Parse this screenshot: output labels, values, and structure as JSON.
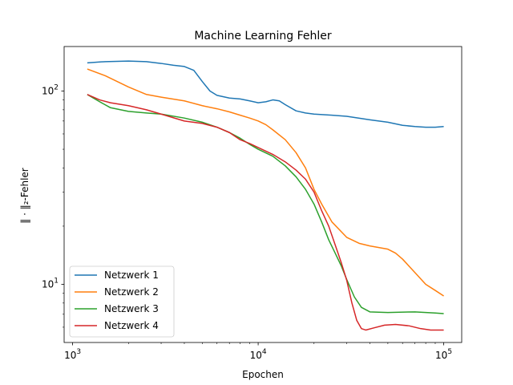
{
  "chart_data": {
    "type": "line",
    "title": "Machine Learning Fehler",
    "xlabel": "Epochen",
    "ylabel": "‖ · ‖₂-Fehler",
    "xscale": "log",
    "yscale": "log",
    "xlim": [
      900,
      125000
    ],
    "ylim": [
      5,
      170
    ],
    "grid": false,
    "legend_position": "lower-left",
    "x_ticks": [
      {
        "value": 1000,
        "base": "10",
        "exp": "3"
      },
      {
        "value": 10000,
        "base": "10",
        "exp": "4"
      },
      {
        "value": 100000,
        "base": "10",
        "exp": "5"
      }
    ],
    "y_ticks": [
      {
        "value": 10,
        "base": "10",
        "exp": "1"
      },
      {
        "value": 100,
        "base": "10",
        "exp": "2"
      }
    ],
    "series": [
      {
        "name": "Netzwerk 1",
        "color": "#1f77b4",
        "points": [
          [
            1200,
            140
          ],
          [
            1500,
            142
          ],
          [
            2000,
            143
          ],
          [
            2500,
            142
          ],
          [
            3000,
            139
          ],
          [
            3500,
            136
          ],
          [
            4000,
            134
          ],
          [
            4500,
            128
          ],
          [
            5000,
            112
          ],
          [
            5500,
            100
          ],
          [
            6000,
            95
          ],
          [
            7000,
            92
          ],
          [
            8000,
            91
          ],
          [
            9000,
            89
          ],
          [
            10000,
            87
          ],
          [
            11000,
            88
          ],
          [
            12000,
            90
          ],
          [
            13000,
            89
          ],
          [
            14000,
            85
          ],
          [
            16000,
            79
          ],
          [
            18000,
            77
          ],
          [
            20000,
            76
          ],
          [
            25000,
            75
          ],
          [
            30000,
            74
          ],
          [
            40000,
            71
          ],
          [
            50000,
            69
          ],
          [
            60000,
            66.5
          ],
          [
            70000,
            65.5
          ],
          [
            80000,
            65
          ],
          [
            90000,
            65
          ],
          [
            100000,
            65.5
          ]
        ]
      },
      {
        "name": "Netzwerk 2",
        "color": "#ff7f0e",
        "points": [
          [
            1200,
            130
          ],
          [
            1500,
            120
          ],
          [
            2000,
            105
          ],
          [
            2500,
            96
          ],
          [
            3000,
            93
          ],
          [
            4000,
            89
          ],
          [
            5000,
            84
          ],
          [
            6000,
            81
          ],
          [
            7000,
            78
          ],
          [
            8000,
            75
          ],
          [
            9000,
            72.5
          ],
          [
            10000,
            70
          ],
          [
            11000,
            67
          ],
          [
            12000,
            63
          ],
          [
            14000,
            56
          ],
          [
            16000,
            48
          ],
          [
            18000,
            40
          ],
          [
            20000,
            31
          ],
          [
            22000,
            26
          ],
          [
            25000,
            21
          ],
          [
            30000,
            17.5
          ],
          [
            35000,
            16.3
          ],
          [
            40000,
            15.8
          ],
          [
            50000,
            15.2
          ],
          [
            55000,
            14.5
          ],
          [
            60000,
            13.5
          ],
          [
            70000,
            11.5
          ],
          [
            80000,
            10
          ],
          [
            90000,
            9.3
          ],
          [
            100000,
            8.7
          ]
        ]
      },
      {
        "name": "Netzwerk 3",
        "color": "#2ca02c",
        "points": [
          [
            1200,
            96
          ],
          [
            1400,
            88
          ],
          [
            1600,
            82
          ],
          [
            2000,
            78.5
          ],
          [
            2500,
            77
          ],
          [
            3000,
            76
          ],
          [
            4000,
            72.5
          ],
          [
            5000,
            69
          ],
          [
            6000,
            65
          ],
          [
            7000,
            61
          ],
          [
            8000,
            57
          ],
          [
            9000,
            53
          ],
          [
            10000,
            50
          ],
          [
            12000,
            46
          ],
          [
            14000,
            41
          ],
          [
            16000,
            36
          ],
          [
            18000,
            31
          ],
          [
            20000,
            26
          ],
          [
            22000,
            21
          ],
          [
            24000,
            17
          ],
          [
            26000,
            14.5
          ],
          [
            28000,
            12.5
          ],
          [
            30000,
            10.6
          ],
          [
            33000,
            8.6
          ],
          [
            36000,
            7.6
          ],
          [
            40000,
            7.2
          ],
          [
            50000,
            7.15
          ],
          [
            70000,
            7.2
          ],
          [
            90000,
            7.1
          ],
          [
            100000,
            7.05
          ]
        ]
      },
      {
        "name": "Netzwerk 4",
        "color": "#d62728",
        "points": [
          [
            1200,
            96
          ],
          [
            1400,
            90
          ],
          [
            1600,
            87
          ],
          [
            2000,
            84
          ],
          [
            2500,
            80
          ],
          [
            3000,
            76
          ],
          [
            4000,
            70
          ],
          [
            5000,
            68
          ],
          [
            6000,
            65
          ],
          [
            7000,
            61
          ],
          [
            8000,
            56
          ],
          [
            9000,
            53.5
          ],
          [
            10000,
            51
          ],
          [
            12000,
            47
          ],
          [
            14000,
            43
          ],
          [
            16000,
            39
          ],
          [
            18000,
            35
          ],
          [
            20000,
            30
          ],
          [
            22000,
            24
          ],
          [
            24000,
            20
          ],
          [
            26000,
            16
          ],
          [
            28000,
            13
          ],
          [
            30000,
            10.5
          ],
          [
            32000,
            8
          ],
          [
            34000,
            6.5
          ],
          [
            36000,
            5.9
          ],
          [
            38000,
            5.8
          ],
          [
            42000,
            5.95
          ],
          [
            48000,
            6.15
          ],
          [
            55000,
            6.2
          ],
          [
            65000,
            6.1
          ],
          [
            75000,
            5.9
          ],
          [
            85000,
            5.8
          ],
          [
            100000,
            5.8
          ]
        ]
      }
    ]
  }
}
